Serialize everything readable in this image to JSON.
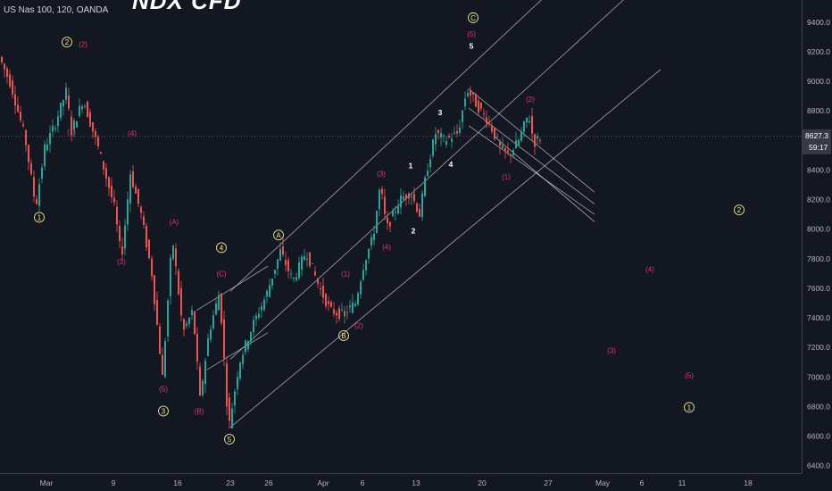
{
  "header": {
    "symbol": "US Nas 100, 120, OANDA",
    "title": "NDX CFD"
  },
  "price_axis": {
    "labels": [
      "9400.0",
      "9200.0",
      "9000.0",
      "8800.0",
      "8600.0",
      "8400.0",
      "8200.0",
      "8000.0",
      "7800.0",
      "7600.0",
      "7400.0",
      "7200.0",
      "7000.0",
      "6800.0",
      "6600.0",
      "6400.0"
    ],
    "current_price": "8627.3",
    "countdown": "59:17"
  },
  "time_axis": {
    "labels": [
      "Mar",
      "9",
      "16",
      "23",
      "26",
      "Apr",
      "6",
      "13",
      "20",
      "27",
      "May",
      "6",
      "11",
      "18"
    ]
  },
  "colors": {
    "background": "#131722",
    "up": "#26a69a",
    "down": "#ef5350",
    "wave_label": "#e0356b",
    "circle_label": "#f0e68c",
    "white_label": "#ffffff",
    "lines": "#c8c8c8"
  },
  "chart_data": {
    "type": "candlestick",
    "title": "NDX CFD",
    "symbol": "US Nas 100, 120, OANDA",
    "ylim": [
      6350,
      9550
    ],
    "yticks": [
      9400,
      9200,
      9000,
      8800,
      8600,
      8400,
      8200,
      8000,
      7800,
      7600,
      7400,
      7200,
      7000,
      6800,
      6600,
      6400
    ],
    "current_price": 8627.3,
    "price_path": [
      [
        0,
        9180
      ],
      [
        14,
        8980
      ],
      [
        30,
        8620
      ],
      [
        42,
        8150
      ],
      [
        52,
        8550
      ],
      [
        63,
        8700
      ],
      [
        76,
        8930
      ],
      [
        82,
        8660
      ],
      [
        95,
        8880
      ],
      [
        112,
        8550
      ],
      [
        130,
        8150
      ],
      [
        138,
        7800
      ],
      [
        148,
        8380
      ],
      [
        160,
        8100
      ],
      [
        172,
        7700
      ],
      [
        184,
        7000
      ],
      [
        195,
        7950
      ],
      [
        207,
        7300
      ],
      [
        218,
        7450
      ],
      [
        226,
        6850
      ],
      [
        236,
        7300
      ],
      [
        248,
        7580
      ],
      [
        258,
        6650
      ],
      [
        270,
        7100
      ],
      [
        285,
        7350
      ],
      [
        300,
        7550
      ],
      [
        316,
        7850
      ],
      [
        330,
        7650
      ],
      [
        345,
        7850
      ],
      [
        360,
        7600
      ],
      [
        372,
        7450
      ],
      [
        386,
        7420
      ],
      [
        400,
        7500
      ],
      [
        410,
        7780
      ],
      [
        420,
        7950
      ],
      [
        428,
        8300
      ],
      [
        435,
        8000
      ],
      [
        450,
        8200
      ],
      [
        462,
        8250
      ],
      [
        472,
        8100
      ],
      [
        480,
        8400
      ],
      [
        490,
        8650
      ],
      [
        500,
        8600
      ],
      [
        515,
        8650
      ],
      [
        525,
        8950
      ],
      [
        535,
        8850
      ],
      [
        550,
        8720
      ],
      [
        562,
        8550
      ],
      [
        572,
        8500
      ],
      [
        583,
        8600
      ],
      [
        594,
        8780
      ],
      [
        600,
        8580
      ],
      [
        606,
        8620
      ]
    ],
    "wave_labels": [
      {
        "text": "2",
        "t": 75,
        "p": 9265,
        "style": "circle"
      },
      {
        "text": "(2)",
        "t": 93,
        "p": 9250,
        "style": "red"
      },
      {
        "text": "(1)",
        "t": 80,
        "p": 8660,
        "style": "red"
      },
      {
        "text": "1",
        "t": 44,
        "p": 8080,
        "style": "circle"
      },
      {
        "text": "(4)",
        "t": 148,
        "p": 8650,
        "style": "red"
      },
      {
        "text": "(3)",
        "t": 136,
        "p": 7780,
        "style": "red"
      },
      {
        "text": "(A)",
        "t": 195,
        "p": 8050,
        "style": "red"
      },
      {
        "text": "4",
        "t": 248,
        "p": 7875,
        "style": "circle"
      },
      {
        "text": "(C)",
        "t": 248,
        "p": 7700,
        "style": "red"
      },
      {
        "text": "(5)",
        "t": 183,
        "p": 6920,
        "style": "red"
      },
      {
        "text": "3",
        "t": 183,
        "p": 6770,
        "style": "circle"
      },
      {
        "text": "(B)",
        "t": 223,
        "p": 6770,
        "style": "red"
      },
      {
        "text": "5",
        "t": 257,
        "p": 6580,
        "style": "circle"
      },
      {
        "text": "A",
        "t": 312,
        "p": 7960,
        "style": "circle"
      },
      {
        "text": "B",
        "t": 385,
        "p": 7280,
        "style": "circle"
      },
      {
        "text": "(1)",
        "t": 387,
        "p": 7700,
        "style": "red"
      },
      {
        "text": "(2)",
        "t": 402,
        "p": 7350,
        "style": "red"
      },
      {
        "text": "(3)",
        "t": 427,
        "p": 8375,
        "style": "red"
      },
      {
        "text": "(4)",
        "t": 433,
        "p": 7880,
        "style": "red"
      },
      {
        "text": "1",
        "t": 460,
        "p": 8430,
        "style": "white"
      },
      {
        "text": "2",
        "t": 463,
        "p": 7990,
        "style": "white"
      },
      {
        "text": "3",
        "t": 493,
        "p": 8790,
        "style": "white"
      },
      {
        "text": "4",
        "t": 505,
        "p": 8440,
        "style": "white"
      },
      {
        "text": "C",
        "t": 530,
        "p": 9430,
        "style": "circle"
      },
      {
        "text": "(5)",
        "t": 528,
        "p": 9320,
        "style": "red"
      },
      {
        "text": "5",
        "t": 528,
        "p": 9240,
        "style": "white"
      },
      {
        "text": "(1)",
        "t": 567,
        "p": 8355,
        "style": "red"
      },
      {
        "text": "(2)",
        "t": 594,
        "p": 8880,
        "style": "red"
      },
      {
        "text": "2",
        "t": 828,
        "p": 8130,
        "style": "circle"
      },
      {
        "text": "(4)",
        "t": 728,
        "p": 7730,
        "style": "red"
      },
      {
        "text": "(3)",
        "t": 685,
        "p": 7180,
        "style": "red"
      },
      {
        "text": "(5)",
        "t": 772,
        "p": 7010,
        "style": "red"
      },
      {
        "text": "1",
        "t": 772,
        "p": 6795,
        "style": "circle"
      }
    ]
  }
}
